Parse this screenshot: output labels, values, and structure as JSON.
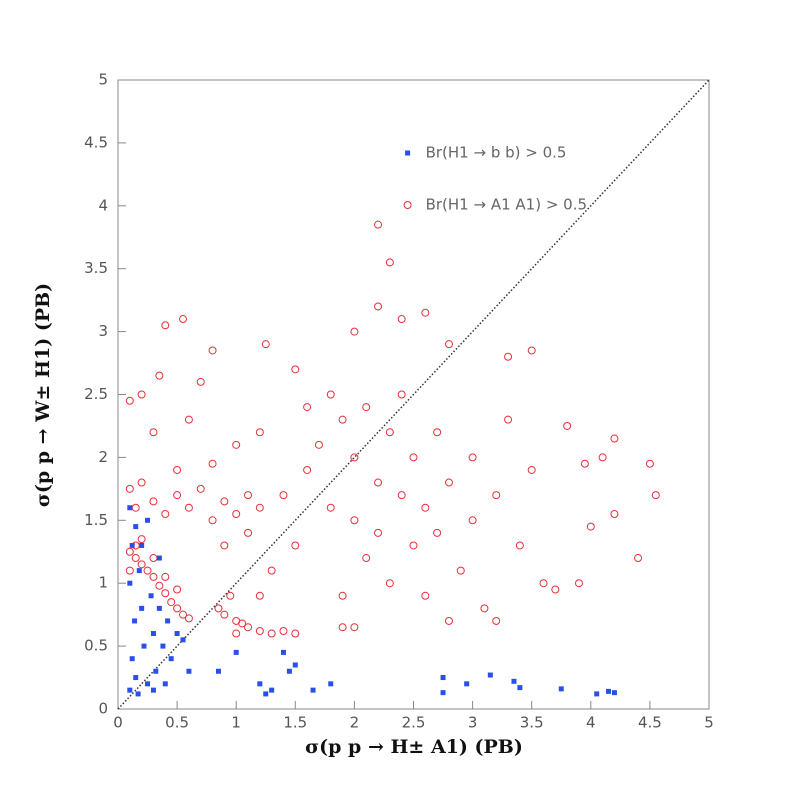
{
  "chart_data": {
    "type": "scatter",
    "xlabel": "σ(p p → H± A1) (PB)",
    "ylabel": "σ(p p → W± H1) (PB)",
    "xlim": [
      0,
      5
    ],
    "ylim": [
      0,
      5
    ],
    "xticks": [
      0,
      0.5,
      1,
      1.5,
      2,
      2.5,
      3,
      3.5,
      4,
      4.5,
      5
    ],
    "yticks": [
      0,
      0.5,
      1,
      1.5,
      2,
      2.5,
      3,
      3.5,
      4,
      4.5,
      5
    ],
    "legend_position": "upper right",
    "diagonal": true,
    "series": [
      {
        "name": "Br(H1 → b b) > 0.5",
        "color": "#2a4fe8",
        "marker": "filled-square",
        "x": [
          0.1,
          0.12,
          0.14,
          0.1,
          0.12,
          0.1,
          0.15,
          0.18,
          0.2,
          0.22,
          0.25,
          0.28,
          0.3,
          0.32,
          0.35,
          0.38,
          0.4,
          0.42,
          0.45,
          0.5,
          0.55,
          0.6,
          0.2,
          0.25,
          0.15,
          0.35,
          0.3,
          0.17,
          0.85,
          1.0,
          1.2,
          1.25,
          1.3,
          1.4,
          1.45,
          1.5,
          1.65,
          1.8,
          2.75,
          2.75,
          2.95,
          3.15,
          3.35,
          3.4,
          3.75,
          4.05,
          4.15,
          4.2
        ],
        "values": [
          0.15,
          0.4,
          0.7,
          1.0,
          1.3,
          1.6,
          1.45,
          1.1,
          0.8,
          0.5,
          0.2,
          0.9,
          0.6,
          0.3,
          0.8,
          0.5,
          0.2,
          0.7,
          0.4,
          0.6,
          0.55,
          0.3,
          1.3,
          1.5,
          0.25,
          1.2,
          0.15,
          0.12,
          0.3,
          0.45,
          0.2,
          0.12,
          0.15,
          0.45,
          0.3,
          0.35,
          0.15,
          0.2,
          0.25,
          0.13,
          0.2,
          0.27,
          0.22,
          0.17,
          0.16,
          0.12,
          0.14,
          0.13
        ]
      },
      {
        "name": "Br(H1 → A1 A1) > 0.5",
        "color": "#e8303a",
        "marker": "open-circle",
        "x": [
          1.6,
          1.7,
          1.8,
          1.9,
          2.0,
          2.0,
          2.1,
          2.1,
          2.2,
          2.2,
          2.3,
          2.3,
          2.4,
          2.4,
          2.5,
          2.5,
          2.6,
          2.6,
          2.7,
          2.7,
          2.8,
          2.9,
          3.0,
          3.0,
          3.1,
          3.2,
          3.3,
          3.4,
          3.5,
          3.6,
          1.9,
          2.0,
          1.8,
          1.5,
          1.6,
          1.4,
          1.3,
          2.2,
          2.3,
          2.2,
          2.4,
          2.0,
          2.6,
          2.8,
          3.3,
          3.5,
          3.8,
          4.2,
          4.5,
          4.55,
          4.4,
          4.2,
          4.0,
          3.9,
          3.7,
          3.2,
          2.8,
          1.9,
          4.1,
          3.95,
          0.1,
          0.15,
          0.2,
          0.3,
          0.4,
          0.5,
          0.6,
          0.7,
          0.8,
          0.9,
          1.0,
          1.1,
          1.2,
          0.5,
          0.8,
          1.0,
          0.3,
          0.6,
          0.2,
          0.35,
          0.55,
          0.4,
          0.8,
          0.7,
          1.2,
          1.1,
          0.9,
          0.1,
          1.25,
          1.5,
          0.1,
          0.15,
          0.2,
          0.25,
          0.3,
          0.35,
          0.4,
          0.45,
          0.5,
          0.55,
          0.6,
          0.15,
          0.3,
          0.4,
          0.2,
          0.5,
          0.1,
          0.85,
          0.9,
          1.0,
          1.05,
          1.1,
          1.2,
          1.3,
          1.4,
          1.5,
          1.0,
          0.95,
          1.2
        ],
        "values": [
          1.9,
          2.1,
          1.6,
          2.3,
          1.5,
          2.0,
          1.2,
          2.4,
          1.8,
          1.4,
          2.2,
          1.0,
          1.7,
          2.5,
          1.3,
          2.0,
          1.6,
          0.9,
          2.2,
          1.4,
          1.8,
          1.1,
          2.0,
          1.5,
          0.8,
          1.7,
          2.3,
          1.3,
          1.9,
          1.0,
          0.9,
          0.65,
          2.5,
          1.3,
          2.4,
          1.7,
          1.1,
          3.85,
          3.55,
          3.2,
          3.1,
          3.0,
          3.15,
          2.9,
          2.8,
          2.85,
          2.25,
          2.15,
          1.95,
          1.7,
          1.2,
          1.55,
          1.45,
          1.0,
          0.95,
          0.7,
          0.7,
          0.65,
          2.0,
          1.95,
          1.75,
          1.6,
          1.8,
          1.65,
          1.55,
          1.7,
          1.6,
          1.75,
          1.5,
          1.65,
          1.55,
          1.7,
          1.6,
          1.9,
          1.95,
          2.1,
          2.2,
          2.3,
          2.5,
          2.65,
          3.1,
          3.05,
          2.85,
          2.6,
          2.2,
          1.4,
          1.3,
          2.45,
          2.9,
          2.7,
          1.25,
          1.2,
          1.15,
          1.1,
          1.05,
          0.98,
          0.92,
          0.85,
          0.8,
          0.75,
          0.72,
          1.3,
          1.2,
          1.05,
          1.35,
          0.95,
          1.1,
          0.8,
          0.75,
          0.7,
          0.68,
          0.65,
          0.62,
          0.6,
          0.62,
          0.6,
          0.6,
          0.9,
          0.9
        ]
      }
    ]
  }
}
